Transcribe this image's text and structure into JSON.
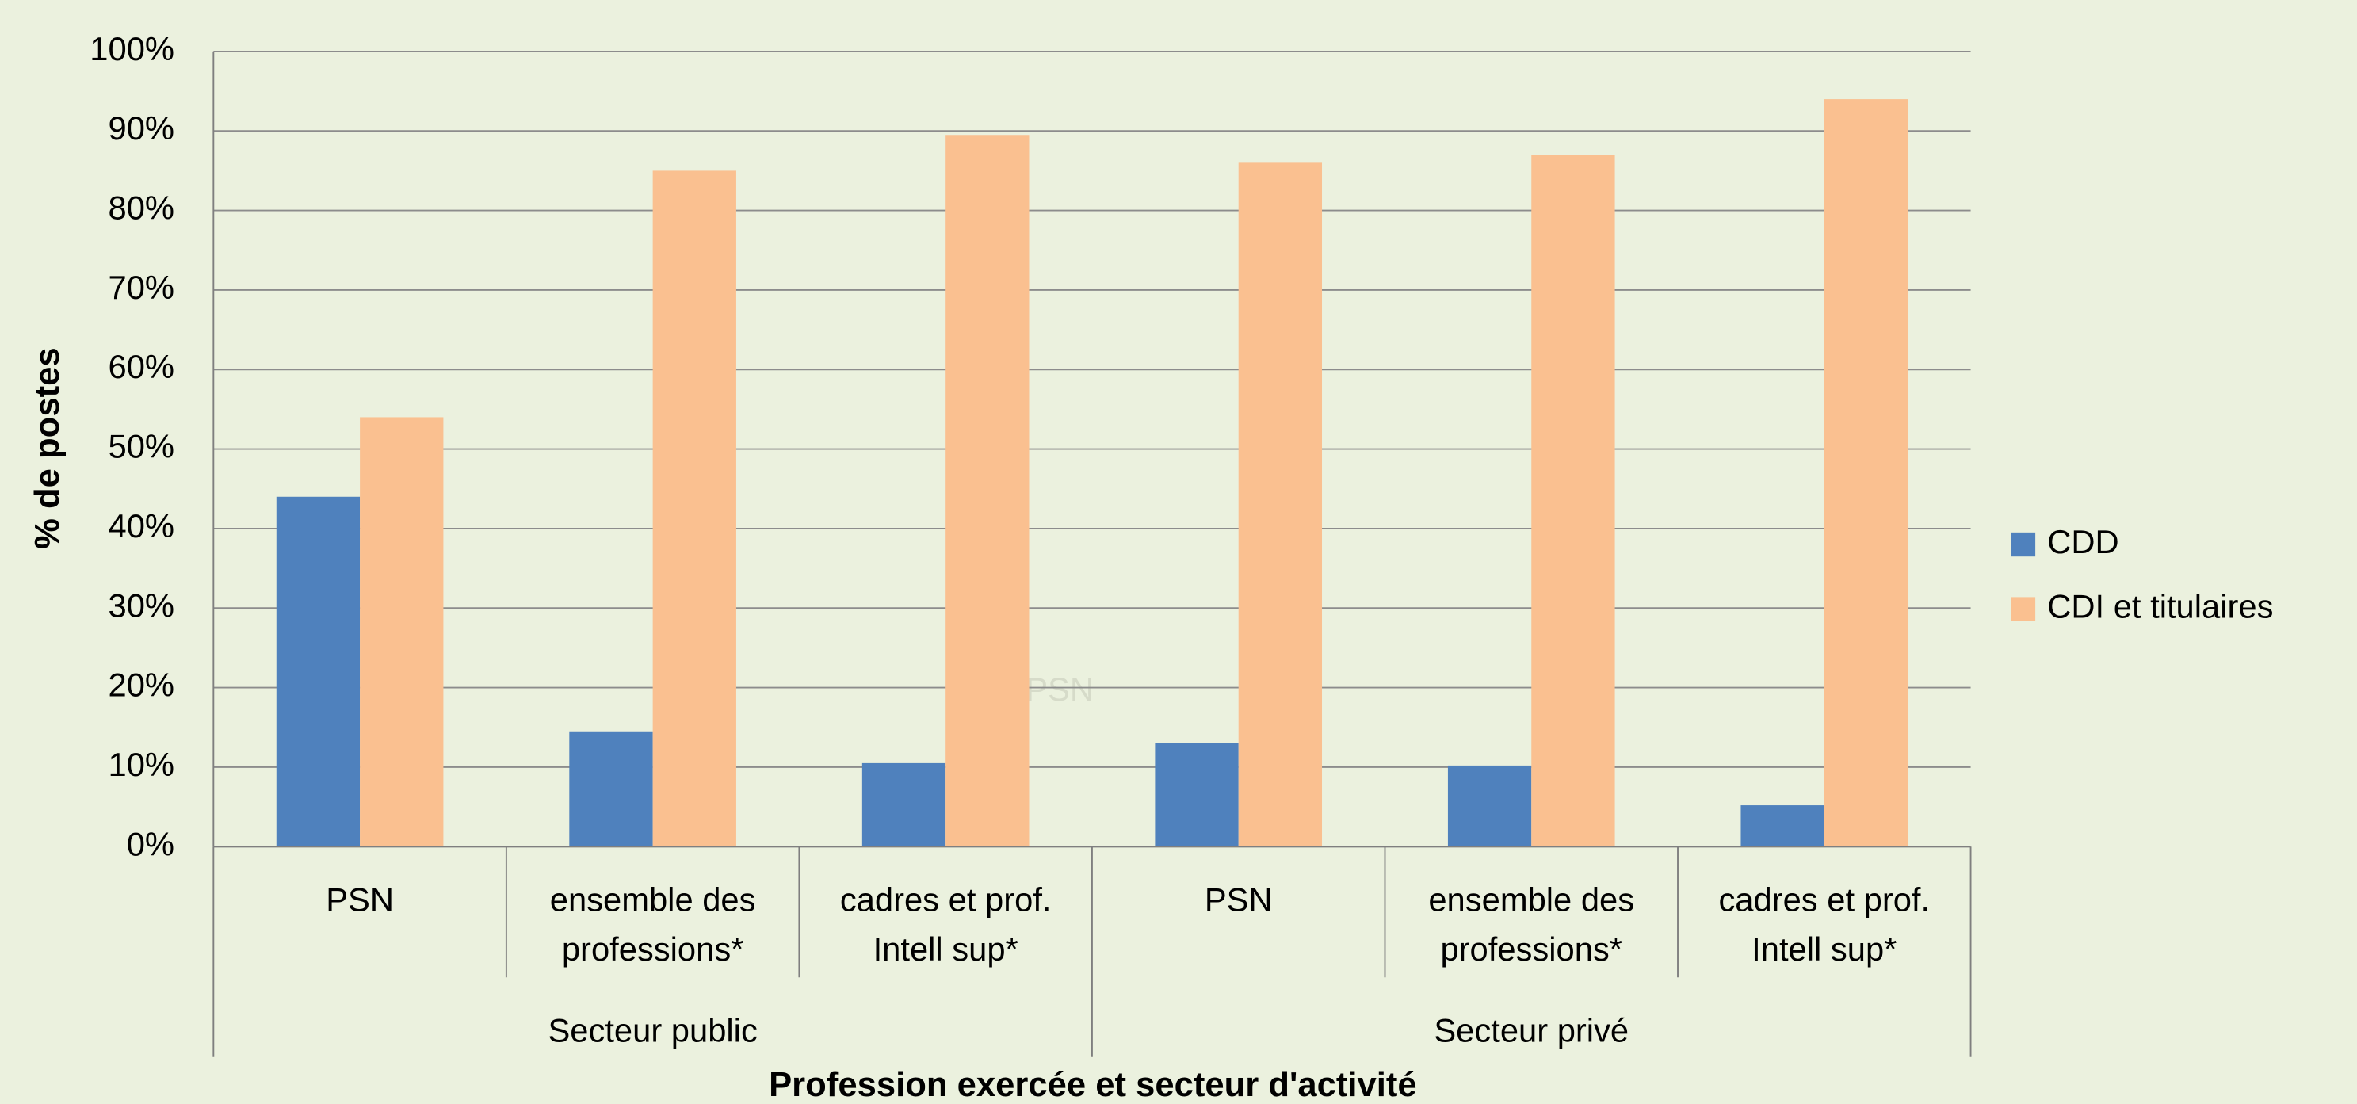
{
  "chart_data": {
    "type": "bar",
    "y_axis_label": "% de postes",
    "x_axis_label": "Profession exercée et secteur d'activité",
    "categories": [
      [
        "PSN"
      ],
      [
        "ensemble des",
        "professions*"
      ],
      [
        "cadres et prof.",
        "Intell sup*"
      ],
      [
        "PSN"
      ],
      [
        "ensemble des",
        "professions*"
      ],
      [
        "cadres et prof.",
        "Intell sup*"
      ]
    ],
    "groups": [
      "Secteur public",
      "Secteur privé"
    ],
    "series": [
      {
        "name": "CDD",
        "color": "#4f81bd",
        "values": [
          44,
          14.5,
          10.5,
          13,
          10.2,
          5.2
        ]
      },
      {
        "name": "CDI et titulaires",
        "color": "#fac090",
        "values": [
          54,
          85,
          89.5,
          86,
          87,
          94
        ]
      }
    ],
    "ylim": [
      0,
      100
    ],
    "yticks": [
      {
        "value": 0,
        "label": "0%"
      },
      {
        "value": 10,
        "label": "10%"
      },
      {
        "value": 20,
        "label": "20%"
      },
      {
        "value": 30,
        "label": "30%"
      },
      {
        "value": 40,
        "label": "40%"
      },
      {
        "value": 50,
        "label": "50%"
      },
      {
        "value": 60,
        "label": "60%"
      },
      {
        "value": 70,
        "label": "70%"
      },
      {
        "value": 80,
        "label": "80%"
      },
      {
        "value": 90,
        "label": "90%"
      },
      {
        "value": 100,
        "label": "100%"
      }
    ],
    "grid": true,
    "legend": "right",
    "annotation": "PSN"
  }
}
